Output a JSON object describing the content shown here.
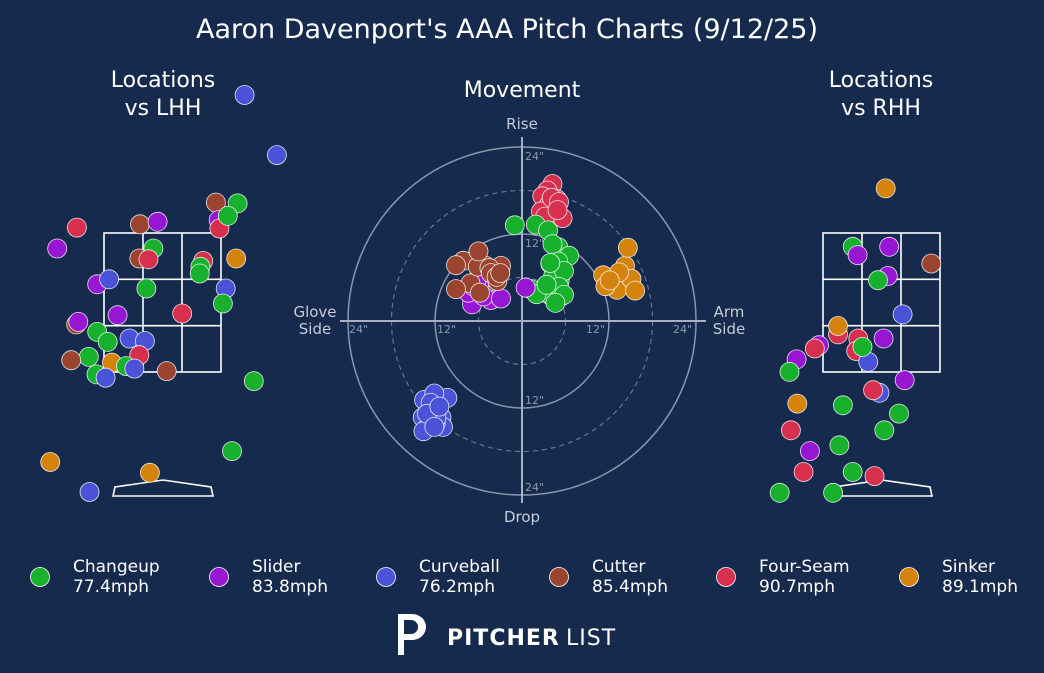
{
  "title": "Aaron Davenport's AAA Pitch Charts (9/12/25)",
  "brand": {
    "bold": "PITCHER",
    "light": "LIST"
  },
  "pitch_types": [
    {
      "name": "Changeup",
      "speed": "77.4mph",
      "color": "#17b12e"
    },
    {
      "name": "Slider",
      "speed": "83.8mph",
      "color": "#9716d1"
    },
    {
      "name": "Curveball",
      "speed": "76.2mph",
      "color": "#4a52d8"
    },
    {
      "name": "Cutter",
      "speed": "85.4mph",
      "color": "#9b4531"
    },
    {
      "name": "Four-Seam",
      "speed": "90.7mph",
      "color": "#d7304e"
    },
    {
      "name": "Sinker",
      "speed": "89.1mph",
      "color": "#d4840c"
    }
  ],
  "chart_data": [
    {
      "type": "scatter",
      "title_lines": [
        "Locations",
        "vs LHH"
      ],
      "points": [
        {
          "type": "Curveball",
          "x": 1.17,
          "y": 4.82
        },
        {
          "type": "Curveball",
          "x": 1.63,
          "y": 4.1
        },
        {
          "type": "Changeup",
          "x": 1.07,
          "y": 3.52
        },
        {
          "type": "Cutter",
          "x": 0.76,
          "y": 3.53
        },
        {
          "type": "Slider",
          "x": 0.8,
          "y": 3.32
        },
        {
          "type": "Four-Seam",
          "x": 0.81,
          "y": 3.22
        },
        {
          "type": "Changeup",
          "x": 0.93,
          "y": 3.37
        },
        {
          "type": "Cutter",
          "x": -0.32,
          "y": 3.27
        },
        {
          "type": "Slider",
          "x": -0.07,
          "y": 3.3
        },
        {
          "type": "Changeup",
          "x": -0.13,
          "y": 2.98
        },
        {
          "type": "Four-Seam",
          "x": 0.58,
          "y": 2.83
        },
        {
          "type": "Cutter",
          "x": -0.33,
          "y": 2.86
        },
        {
          "type": "Changeup",
          "x": 0.54,
          "y": 2.76
        },
        {
          "type": "Sinker",
          "x": 1.05,
          "y": 2.86
        },
        {
          "type": "Four-Seam",
          "x": -0.2,
          "y": 2.85
        },
        {
          "type": "Changeup",
          "x": 0.53,
          "y": 2.68
        },
        {
          "type": "Four-Seam",
          "x": -1.22,
          "y": 3.23
        },
        {
          "type": "Slider",
          "x": -1.5,
          "y": 2.98
        },
        {
          "type": "Slider",
          "x": -0.93,
          "y": 2.55
        },
        {
          "type": "Curveball",
          "x": -0.76,
          "y": 2.61
        },
        {
          "type": "Changeup",
          "x": -0.23,
          "y": 2.5
        },
        {
          "type": "Curveball",
          "x": 0.9,
          "y": 2.5
        },
        {
          "type": "Changeup",
          "x": 0.86,
          "y": 2.32
        },
        {
          "type": "Cutter",
          "x": -2.15,
          "y": 2.37
        },
        {
          "type": "Four-Seam",
          "x": 0.28,
          "y": 2.2
        },
        {
          "type": "Slider",
          "x": -0.64,
          "y": 2.18
        },
        {
          "type": "Cutter",
          "x": -2.08,
          "y": 2.07
        },
        {
          "type": "Cutter",
          "x": -1.23,
          "y": 2.07
        },
        {
          "type": "Slider",
          "x": -1.2,
          "y": 2.1
        },
        {
          "type": "Curveball",
          "x": -1.67,
          "y": 1.92
        },
        {
          "type": "Slider",
          "x": -1.72,
          "y": 1.85
        },
        {
          "type": "Changeup",
          "x": -0.93,
          "y": 1.98
        },
        {
          "type": "Changeup",
          "x": -0.78,
          "y": 1.86
        },
        {
          "type": "Curveball",
          "x": -0.47,
          "y": 1.9
        },
        {
          "type": "Curveball",
          "x": -0.25,
          "y": 1.87
        },
        {
          "type": "Changeup",
          "x": -1.05,
          "y": 1.68
        },
        {
          "type": "Cutter",
          "x": -1.3,
          "y": 1.64
        },
        {
          "type": "Sinker",
          "x": -0.72,
          "y": 1.61
        },
        {
          "type": "Four-Seam",
          "x": -0.33,
          "y": 1.7
        },
        {
          "type": "Changeup",
          "x": -0.52,
          "y": 1.57
        },
        {
          "type": "Curveball",
          "x": -0.4,
          "y": 1.54
        },
        {
          "type": "Slider",
          "x": -1.68,
          "y": 1.5
        },
        {
          "type": "Changeup",
          "x": -0.94,
          "y": 1.47
        },
        {
          "type": "Curveball",
          "x": -0.81,
          "y": 1.43
        },
        {
          "type": "Cutter",
          "x": 0.06,
          "y": 1.51
        },
        {
          "type": "Changeup",
          "x": 1.3,
          "y": 1.39
        },
        {
          "type": "Slider",
          "x": -1.69,
          "y": 0.67
        },
        {
          "type": "Changeup",
          "x": 0.99,
          "y": 0.55
        },
        {
          "type": "Sinker",
          "x": -1.6,
          "y": 0.42
        },
        {
          "type": "Slider",
          "x": -1.87,
          "y": 0.3
        },
        {
          "type": "Sinker",
          "x": -0.18,
          "y": 0.29
        },
        {
          "type": "Curveball",
          "x": -1.04,
          "y": 0.06
        }
      ]
    },
    {
      "type": "scatter",
      "title_lines": [
        "Movement"
      ],
      "axis_labels": {
        "top": "Rise",
        "bottom": "Drop",
        "left": [
          "Glove",
          "Side"
        ],
        "right": [
          "Arm",
          "Side"
        ]
      },
      "ring_labels": [
        "12\"",
        "24\""
      ],
      "points": [
        {
          "type": "Four-Seam",
          "x": 4.2,
          "y": 18.9
        },
        {
          "type": "Four-Seam",
          "x": 3.5,
          "y": 18.0
        },
        {
          "type": "Four-Seam",
          "x": 2.8,
          "y": 17.2
        },
        {
          "type": "Four-Seam",
          "x": 4.8,
          "y": 16.8
        },
        {
          "type": "Four-Seam",
          "x": 3.7,
          "y": 16.0
        },
        {
          "type": "Four-Seam",
          "x": 2.6,
          "y": 15.1
        },
        {
          "type": "Four-Seam",
          "x": 5.6,
          "y": 14.2
        },
        {
          "type": "Four-Seam",
          "x": 4.1,
          "y": 17.0
        },
        {
          "type": "Four-Seam",
          "x": 3.2,
          "y": 14.4
        },
        {
          "type": "Four-Seam",
          "x": 5.1,
          "y": 16.4
        },
        {
          "type": "Four-Seam",
          "x": 4.9,
          "y": 15.3
        },
        {
          "type": "Changeup",
          "x": 1.9,
          "y": 13.3
        },
        {
          "type": "Changeup",
          "x": 3.6,
          "y": 12.5
        },
        {
          "type": "Changeup",
          "x": -1.0,
          "y": 13.2
        },
        {
          "type": "Changeup",
          "x": 5.0,
          "y": 10.2
        },
        {
          "type": "Changeup",
          "x": 4.2,
          "y": 10.6
        },
        {
          "type": "Changeup",
          "x": 6.5,
          "y": 9.0
        },
        {
          "type": "Changeup",
          "x": 5.0,
          "y": 8.2
        },
        {
          "type": "Changeup",
          "x": 3.9,
          "y": 7.9
        },
        {
          "type": "Changeup",
          "x": 5.2,
          "y": 5.6
        },
        {
          "type": "Changeup",
          "x": 4.5,
          "y": 4.5
        },
        {
          "type": "Changeup",
          "x": 2.8,
          "y": 4.3
        },
        {
          "type": "Changeup",
          "x": 4.1,
          "y": 3.4
        },
        {
          "type": "Changeup",
          "x": 3.2,
          "y": 3.9
        },
        {
          "type": "Changeup",
          "x": 5.4,
          "y": 3.4
        },
        {
          "type": "Changeup",
          "x": 4.3,
          "y": 6.2
        },
        {
          "type": "Changeup",
          "x": 5.8,
          "y": 6.9
        },
        {
          "type": "Changeup",
          "x": 1.2,
          "y": 4.4
        },
        {
          "type": "Changeup",
          "x": 2.0,
          "y": 3.7
        },
        {
          "type": "Changeup",
          "x": 5.1,
          "y": 4.7
        },
        {
          "type": "Changeup",
          "x": 5.8,
          "y": 3.6
        },
        {
          "type": "Changeup",
          "x": 4.6,
          "y": 2.5
        },
        {
          "type": "Changeup",
          "x": 3.4,
          "y": 5.0
        },
        {
          "type": "Changeup",
          "x": 3.9,
          "y": 8.0
        },
        {
          "type": "Sinker",
          "x": 11.2,
          "y": 6.3
        },
        {
          "type": "Sinker",
          "x": 12.3,
          "y": 5.4
        },
        {
          "type": "Sinker",
          "x": 13.1,
          "y": 4.3
        },
        {
          "type": "Sinker",
          "x": 14.2,
          "y": 7.6
        },
        {
          "type": "Sinker",
          "x": 15.1,
          "y": 5.8
        },
        {
          "type": "Sinker",
          "x": 11.5,
          "y": 4.8
        },
        {
          "type": "Sinker",
          "x": 13.4,
          "y": 6.7
        },
        {
          "type": "Sinker",
          "x": 12.1,
          "y": 5.6
        },
        {
          "type": "Sinker",
          "x": 15.6,
          "y": 4.2
        },
        {
          "type": "Sinker",
          "x": 14.6,
          "y": 10.1
        },
        {
          "type": "Slider",
          "x": -4.6,
          "y": 6.0
        },
        {
          "type": "Slider",
          "x": -5.9,
          "y": 5.1
        },
        {
          "type": "Slider",
          "x": -6.9,
          "y": 2.3
        },
        {
          "type": "Slider",
          "x": -7.4,
          "y": 3.9
        },
        {
          "type": "Slider",
          "x": -4.3,
          "y": 2.9
        },
        {
          "type": "Slider",
          "x": -5.3,
          "y": 3.4
        },
        {
          "type": "Slider",
          "x": 0.5,
          "y": 4.6
        },
        {
          "type": "Slider",
          "x": -6.6,
          "y": 4.7
        },
        {
          "type": "Slider",
          "x": -2.9,
          "y": 3.1
        },
        {
          "type": "Slider",
          "x": -6.3,
          "y": 5.5
        },
        {
          "type": "Slider",
          "x": -3.5,
          "y": 6.6
        },
        {
          "type": "Cutter",
          "x": -8.1,
          "y": 8.3
        },
        {
          "type": "Cutter",
          "x": -5.0,
          "y": 7.6
        },
        {
          "type": "Cutter",
          "x": -7.1,
          "y": 5.2
        },
        {
          "type": "Cutter",
          "x": -6.1,
          "y": 7.5
        },
        {
          "type": "Cutter",
          "x": -2.9,
          "y": 7.6
        },
        {
          "type": "Cutter",
          "x": -4.5,
          "y": 7.3
        },
        {
          "type": "Cutter",
          "x": -4.3,
          "y": 6.6
        },
        {
          "type": "Cutter",
          "x": -3.4,
          "y": 5.5
        },
        {
          "type": "Cutter",
          "x": -5.8,
          "y": 3.9
        },
        {
          "type": "Cutter",
          "x": -6.0,
          "y": 9.6
        },
        {
          "type": "Cutter",
          "x": -9.1,
          "y": 7.7
        },
        {
          "type": "Cutter",
          "x": -3.5,
          "y": 6.1
        },
        {
          "type": "Cutter",
          "x": -9.1,
          "y": 4.4
        },
        {
          "type": "Cutter",
          "x": -3.0,
          "y": 6.6
        },
        {
          "type": "Curveball",
          "x": -12.3,
          "y": -12.0
        },
        {
          "type": "Curveball",
          "x": -10.3,
          "y": -10.6
        },
        {
          "type": "Curveball",
          "x": -13.7,
          "y": -13.3
        },
        {
          "type": "Curveball",
          "x": -11.6,
          "y": -12.3
        },
        {
          "type": "Curveball",
          "x": -12.9,
          "y": -14.5
        },
        {
          "type": "Curveball",
          "x": -13.5,
          "y": -10.9
        },
        {
          "type": "Curveball",
          "x": -11.1,
          "y": -13.3
        },
        {
          "type": "Curveball",
          "x": -12.1,
          "y": -10.0
        },
        {
          "type": "Curveball",
          "x": -10.9,
          "y": -14.6
        },
        {
          "type": "Curveball",
          "x": -12.3,
          "y": -13.9
        },
        {
          "type": "Curveball",
          "x": -11.9,
          "y": -14.1
        },
        {
          "type": "Curveball",
          "x": -12.6,
          "y": -11.3
        },
        {
          "type": "Curveball",
          "x": -13.6,
          "y": -15.2
        },
        {
          "type": "Curveball",
          "x": -11.8,
          "y": -13.4
        },
        {
          "type": "Curveball",
          "x": -13.1,
          "y": -12.8
        },
        {
          "type": "Curveball",
          "x": -12.1,
          "y": -14.6
        },
        {
          "type": "Curveball",
          "x": -11.4,
          "y": -11.8
        }
      ]
    },
    {
      "type": "scatter",
      "title_lines": [
        "Locations",
        "vs RHH"
      ],
      "points": [
        {
          "type": "Sinker",
          "x": 0.06,
          "y": 3.7
        },
        {
          "type": "Changeup",
          "x": -0.41,
          "y": 3.0
        },
        {
          "type": "Slider",
          "x": -0.34,
          "y": 2.9
        },
        {
          "type": "Slider",
          "x": 0.11,
          "y": 3.0
        },
        {
          "type": "Slider",
          "x": 0.09,
          "y": 2.65
        },
        {
          "type": "Changeup",
          "x": -0.05,
          "y": 2.6
        },
        {
          "type": "Cutter",
          "x": 0.71,
          "y": 2.8
        },
        {
          "type": "Changeup",
          "x": -1.71,
          "y": 2.19
        },
        {
          "type": "Curveball",
          "x": 0.3,
          "y": 2.19
        },
        {
          "type": "Four-Seam",
          "x": -0.62,
          "y": 1.95
        },
        {
          "type": "Sinker",
          "x": -0.62,
          "y": 2.05
        },
        {
          "type": "Four-Seam",
          "x": -0.33,
          "y": 1.9
        },
        {
          "type": "Four-Seam",
          "x": -0.36,
          "y": 1.75
        },
        {
          "type": "Slider",
          "x": 0.03,
          "y": 1.9
        },
        {
          "type": "Slider",
          "x": -0.89,
          "y": 1.82
        },
        {
          "type": "Four-Seam",
          "x": -0.95,
          "y": 1.78
        },
        {
          "type": "Slider",
          "x": -1.21,
          "y": 1.65
        },
        {
          "type": "Changeup",
          "x": -1.31,
          "y": 1.5
        },
        {
          "type": "Curveball",
          "x": -0.19,
          "y": 1.62
        },
        {
          "type": "Changeup",
          "x": -0.27,
          "y": 1.8
        },
        {
          "type": "Curveball",
          "x": -0.03,
          "y": 1.25
        },
        {
          "type": "Slider",
          "x": 0.33,
          "y": 1.4
        },
        {
          "type": "Four-Seam",
          "x": -0.12,
          "y": 1.28
        },
        {
          "type": "Sinker",
          "x": -1.2,
          "y": 1.12
        },
        {
          "type": "Changeup",
          "x": -0.55,
          "y": 1.1
        },
        {
          "type": "Changeup",
          "x": 0.25,
          "y": 1.0
        },
        {
          "type": "Four-Seam",
          "x": -1.29,
          "y": 0.8
        },
        {
          "type": "Changeup",
          "x": 0.04,
          "y": 0.8
        },
        {
          "type": "Changeup",
          "x": -0.6,
          "y": 0.62
        },
        {
          "type": "Slider",
          "x": -1.02,
          "y": 0.55
        },
        {
          "type": "Four-Seam",
          "x": -1.11,
          "y": 0.3
        },
        {
          "type": "Changeup",
          "x": -0.41,
          "y": 0.3
        },
        {
          "type": "Four-Seam",
          "x": -0.1,
          "y": 0.25
        },
        {
          "type": "Changeup",
          "x": -1.45,
          "y": 0.05
        },
        {
          "type": "Changeup",
          "x": -0.69,
          "y": 0.05
        }
      ]
    }
  ]
}
